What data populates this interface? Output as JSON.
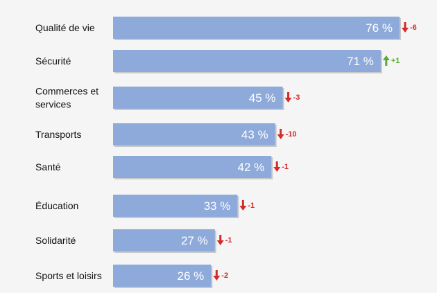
{
  "chart_data": {
    "type": "bar",
    "orientation": "horizontal",
    "title": "",
    "xlabel": "",
    "ylabel": "",
    "xlim": [
      0,
      76
    ],
    "unit": "%",
    "grid": false,
    "legend": "none",
    "categories": [
      [
        "Qualité de vie"
      ],
      [
        "Sécurité"
      ],
      [
        "Commerces et",
        "services"
      ],
      [
        "Transports"
      ],
      [
        "Santé"
      ],
      [
        "Éducation"
      ],
      [
        "Solidarité"
      ],
      [
        "Sports et loisirs"
      ]
    ],
    "values": [
      76,
      71,
      45,
      43,
      42,
      33,
      27,
      26
    ],
    "value_labels": [
      "76 %",
      "71 %",
      "45 %",
      "43 %",
      "42 %",
      "33 %",
      "27 %",
      "26 %"
    ],
    "changes": [
      -6,
      1,
      -3,
      -10,
      -1,
      -1,
      -1,
      -2
    ],
    "change_labels": [
      "-6",
      "+1",
      "-3",
      "-10",
      "-1",
      "-1",
      "-1",
      "-2"
    ],
    "colors": {
      "bar": "#8eaadb",
      "bar_shadow": "#c9c9c9",
      "down": "#d42a2a",
      "up": "#5aa83a",
      "background": "#f5f5f5"
    }
  }
}
